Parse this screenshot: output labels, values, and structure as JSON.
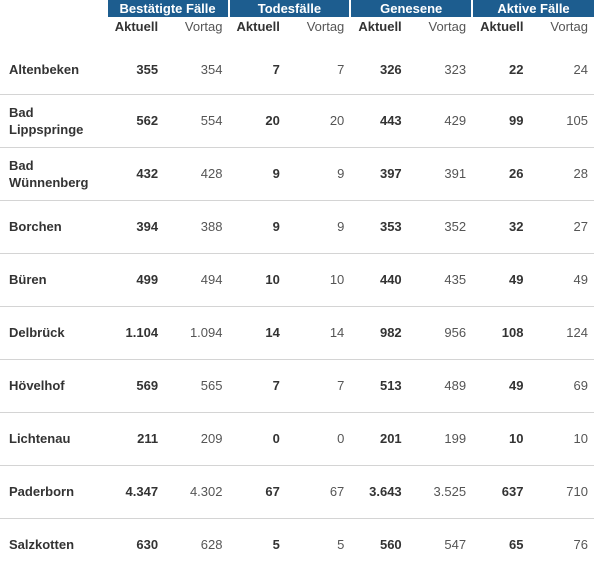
{
  "table": {
    "groups": [
      "Bestätigte Fälle",
      "Todesfälle",
      "Genesene",
      "Aktive Fälle"
    ],
    "sub_current": "Aktuell",
    "sub_previous": "Vortag",
    "rows": [
      {
        "name": "Altenbeken",
        "values": [
          "355",
          "354",
          "7",
          "7",
          "326",
          "323",
          "22",
          "24"
        ]
      },
      {
        "name": "Bad Lippspringe",
        "values": [
          "562",
          "554",
          "20",
          "20",
          "443",
          "429",
          "99",
          "105"
        ]
      },
      {
        "name": "Bad Wünnenberg",
        "values": [
          "432",
          "428",
          "9",
          "9",
          "397",
          "391",
          "26",
          "28"
        ]
      },
      {
        "name": "Borchen",
        "values": [
          "394",
          "388",
          "9",
          "9",
          "353",
          "352",
          "32",
          "27"
        ]
      },
      {
        "name": "Büren",
        "values": [
          "499",
          "494",
          "10",
          "10",
          "440",
          "435",
          "49",
          "49"
        ]
      },
      {
        "name": "Delbrück",
        "values": [
          "1.104",
          "1.094",
          "14",
          "14",
          "982",
          "956",
          "108",
          "124"
        ]
      },
      {
        "name": "Hövelhof",
        "values": [
          "569",
          "565",
          "7",
          "7",
          "513",
          "489",
          "49",
          "69"
        ]
      },
      {
        "name": "Lichtenau",
        "values": [
          "211",
          "209",
          "0",
          "0",
          "201",
          "199",
          "10",
          "10"
        ]
      },
      {
        "name": "Paderborn",
        "values": [
          "4.347",
          "4.302",
          "67",
          "67",
          "3.643",
          "3.525",
          "637",
          "710"
        ]
      },
      {
        "name": "Salzkotten",
        "values": [
          "630",
          "628",
          "5",
          "5",
          "560",
          "547",
          "65",
          "76"
        ]
      }
    ]
  },
  "colors": {
    "header_bg": "#1d5d8f",
    "header_text": "#ffffff",
    "row_divider": "#d4d4d4"
  }
}
